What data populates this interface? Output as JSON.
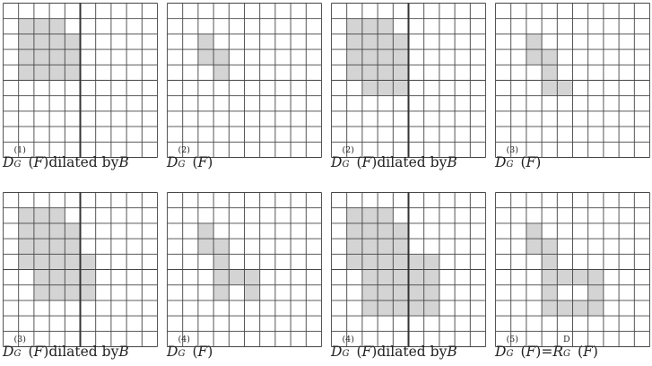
{
  "figure": {
    "line_color": "#444444",
    "center_line_color": "#333333",
    "fill_color": "#d4d4d4",
    "rows": 10,
    "cols": 10,
    "panels": [
      {
        "id": "p1",
        "caption": {
          "sym": "D",
          "sub": "G",
          "sup": "(1)",
          "arg": "(F)",
          "suffix": " dilated by ",
          "tail": "B"
        },
        "filled": [
          [
            1,
            1
          ],
          [
            1,
            2
          ],
          [
            1,
            3
          ],
          [
            2,
            1
          ],
          [
            2,
            2
          ],
          [
            2,
            3
          ],
          [
            2,
            4
          ],
          [
            3,
            1
          ],
          [
            3,
            2
          ],
          [
            3,
            3
          ],
          [
            3,
            4
          ],
          [
            4,
            1
          ],
          [
            4,
            2
          ],
          [
            4,
            3
          ],
          [
            4,
            4
          ]
        ],
        "center_line": true
      },
      {
        "id": "p2",
        "caption": {
          "sym": "D",
          "sub": "G",
          "sup": "(2)",
          "arg": "(F)",
          "suffix": "",
          "tail": ""
        },
        "filled": [
          [
            2,
            2
          ],
          [
            3,
            2
          ],
          [
            3,
            3
          ],
          [
            4,
            3
          ]
        ],
        "center_line": false
      },
      {
        "id": "p3",
        "caption": {
          "sym": "D",
          "sub": "G",
          "sup": "(2)",
          "arg": "(F)",
          "suffix": " dilated by ",
          "tail": "B"
        },
        "filled": [
          [
            1,
            1
          ],
          [
            1,
            2
          ],
          [
            1,
            3
          ],
          [
            2,
            1
          ],
          [
            2,
            2
          ],
          [
            2,
            3
          ],
          [
            2,
            4
          ],
          [
            3,
            1
          ],
          [
            3,
            2
          ],
          [
            3,
            3
          ],
          [
            3,
            4
          ],
          [
            4,
            1
          ],
          [
            4,
            2
          ],
          [
            4,
            3
          ],
          [
            4,
            4
          ],
          [
            5,
            2
          ],
          [
            5,
            3
          ],
          [
            5,
            4
          ]
        ],
        "center_line": true
      },
      {
        "id": "p4",
        "caption": {
          "sym": "D",
          "sub": "G",
          "sup": "(3)",
          "arg": "(F)",
          "suffix": "",
          "tail": ""
        },
        "filled": [
          [
            2,
            2
          ],
          [
            3,
            2
          ],
          [
            3,
            3
          ],
          [
            4,
            3
          ],
          [
            5,
            3
          ],
          [
            5,
            4
          ]
        ],
        "center_line": false
      },
      {
        "id": "p5",
        "caption": {
          "sym": "D",
          "sub": "G",
          "sup": "(3)",
          "arg": "(F)",
          "suffix": " dilated by ",
          "tail": "B"
        },
        "filled": [
          [
            1,
            1
          ],
          [
            1,
            2
          ],
          [
            1,
            3
          ],
          [
            2,
            1
          ],
          [
            2,
            2
          ],
          [
            2,
            3
          ],
          [
            2,
            4
          ],
          [
            3,
            1
          ],
          [
            3,
            2
          ],
          [
            3,
            3
          ],
          [
            3,
            4
          ],
          [
            4,
            1
          ],
          [
            4,
            2
          ],
          [
            4,
            3
          ],
          [
            4,
            4
          ],
          [
            4,
            5
          ],
          [
            5,
            2
          ],
          [
            5,
            3
          ],
          [
            5,
            4
          ],
          [
            5,
            5
          ],
          [
            6,
            2
          ],
          [
            6,
            3
          ],
          [
            6,
            4
          ],
          [
            6,
            5
          ]
        ],
        "center_line": true
      },
      {
        "id": "p6",
        "caption": {
          "sym": "D",
          "sub": "G",
          "sup": "(4)",
          "arg": "(F)",
          "suffix": "",
          "tail": ""
        },
        "filled": [
          [
            2,
            2
          ],
          [
            3,
            2
          ],
          [
            3,
            3
          ],
          [
            4,
            3
          ],
          [
            5,
            3
          ],
          [
            5,
            4
          ],
          [
            5,
            5
          ],
          [
            6,
            3
          ],
          [
            6,
            5
          ]
        ],
        "center_line": false
      },
      {
        "id": "p7",
        "caption": {
          "sym": "D",
          "sub": "G",
          "sup": "(4)",
          "arg": "(F)",
          "suffix": " dilated by ",
          "tail": "B"
        },
        "filled": [
          [
            1,
            1
          ],
          [
            1,
            2
          ],
          [
            1,
            3
          ],
          [
            2,
            1
          ],
          [
            2,
            2
          ],
          [
            2,
            3
          ],
          [
            2,
            4
          ],
          [
            3,
            1
          ],
          [
            3,
            2
          ],
          [
            3,
            3
          ],
          [
            3,
            4
          ],
          [
            4,
            1
          ],
          [
            4,
            2
          ],
          [
            4,
            3
          ],
          [
            4,
            4
          ],
          [
            4,
            5
          ],
          [
            4,
            6
          ],
          [
            5,
            2
          ],
          [
            5,
            3
          ],
          [
            5,
            4
          ],
          [
            5,
            5
          ],
          [
            5,
            6
          ],
          [
            6,
            2
          ],
          [
            6,
            3
          ],
          [
            6,
            4
          ],
          [
            6,
            5
          ],
          [
            6,
            6
          ],
          [
            7,
            2
          ],
          [
            7,
            3
          ],
          [
            7,
            4
          ],
          [
            7,
            5
          ],
          [
            7,
            6
          ]
        ],
        "center_line": true
      },
      {
        "id": "p8",
        "caption": {
          "sym": "D",
          "sub": "G",
          "sup": "(5)",
          "arg": "(F)",
          "suffix": " = ",
          "tail": "",
          "rhs_sym": "R",
          "rhs_sub": "G",
          "rhs_sup": "D",
          "rhs_arg": "(F)"
        },
        "filled": [
          [
            2,
            2
          ],
          [
            3,
            2
          ],
          [
            3,
            3
          ],
          [
            4,
            3
          ],
          [
            5,
            3
          ],
          [
            5,
            4
          ],
          [
            5,
            5
          ],
          [
            5,
            6
          ],
          [
            6,
            3
          ],
          [
            6,
            6
          ],
          [
            7,
            3
          ],
          [
            7,
            4
          ],
          [
            7,
            5
          ],
          [
            7,
            6
          ]
        ],
        "center_line": false
      }
    ]
  }
}
